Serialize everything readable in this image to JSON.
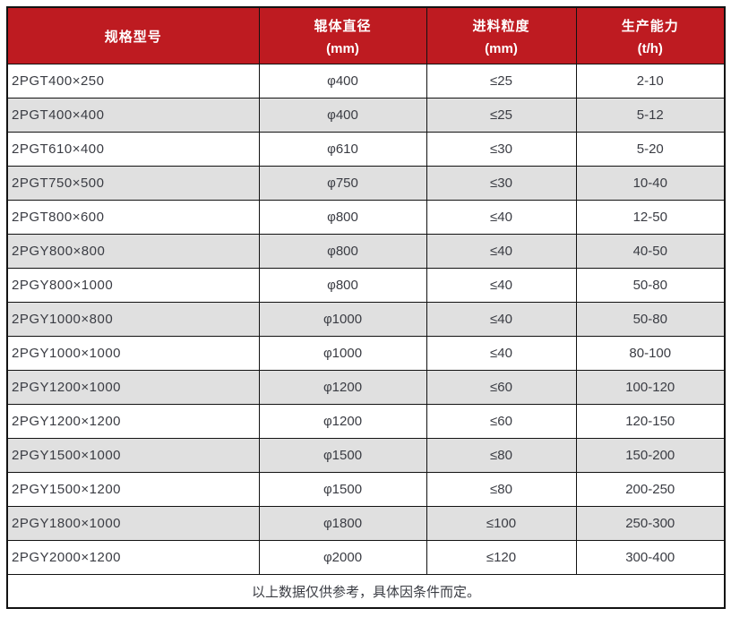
{
  "chart_data": {
    "type": "table",
    "columns": [
      {
        "title": "规格型号",
        "unit": ""
      },
      {
        "title": "辊体直径",
        "unit": "(mm)"
      },
      {
        "title": "进料粒度",
        "unit": "(mm)"
      },
      {
        "title": "生产能力",
        "unit": "(t/h)"
      }
    ],
    "rows": [
      [
        "2PGT400×250",
        "φ400",
        "≤25",
        "2-10"
      ],
      [
        "2PGT400×400",
        "φ400",
        "≤25",
        "5-12"
      ],
      [
        "2PGT610×400",
        "φ610",
        "≤30",
        "5-20"
      ],
      [
        "2PGT750×500",
        "φ750",
        "≤30",
        "10-40"
      ],
      [
        "2PGT800×600",
        "φ800",
        "≤40",
        "12-50"
      ],
      [
        "2PGY800×800",
        "φ800",
        "≤40",
        "40-50"
      ],
      [
        "2PGY800×1000",
        "φ800",
        "≤40",
        "50-80"
      ],
      [
        "2PGY1000×800",
        "φ1000",
        "≤40",
        "50-80"
      ],
      [
        "2PGY1000×1000",
        "φ1000",
        "≤40",
        "80-100"
      ],
      [
        "2PGY1200×1000",
        "φ1200",
        "≤60",
        "100-120"
      ],
      [
        "2PGY1200×1200",
        "φ1200",
        "≤60",
        "120-150"
      ],
      [
        "2PGY1500×1000",
        "φ1500",
        "≤80",
        "150-200"
      ],
      [
        "2PGY1500×1200",
        "φ1500",
        "≤80",
        "200-250"
      ],
      [
        "2PGY1800×1000",
        "φ1800",
        "≤100",
        "250-300"
      ],
      [
        "2PGY2000×1200",
        "φ2000",
        "≤120",
        "300-400"
      ]
    ],
    "footer_note": "以上数据仅供参考，具体因条件而定。",
    "layout_hints": {
      "striping": "alternate data rows shaded",
      "first_column_align": "left",
      "other_columns_align": "center"
    }
  },
  "colors": {
    "header_bg": "#BE1B21",
    "header_text": "#FFFFFF",
    "row_alt_bg": "#E0E0E0",
    "row_bg": "#FFFFFF",
    "grid_border": "#121212",
    "body_text": "#3A3C43",
    "page_bg": "#FFFFFF"
  }
}
